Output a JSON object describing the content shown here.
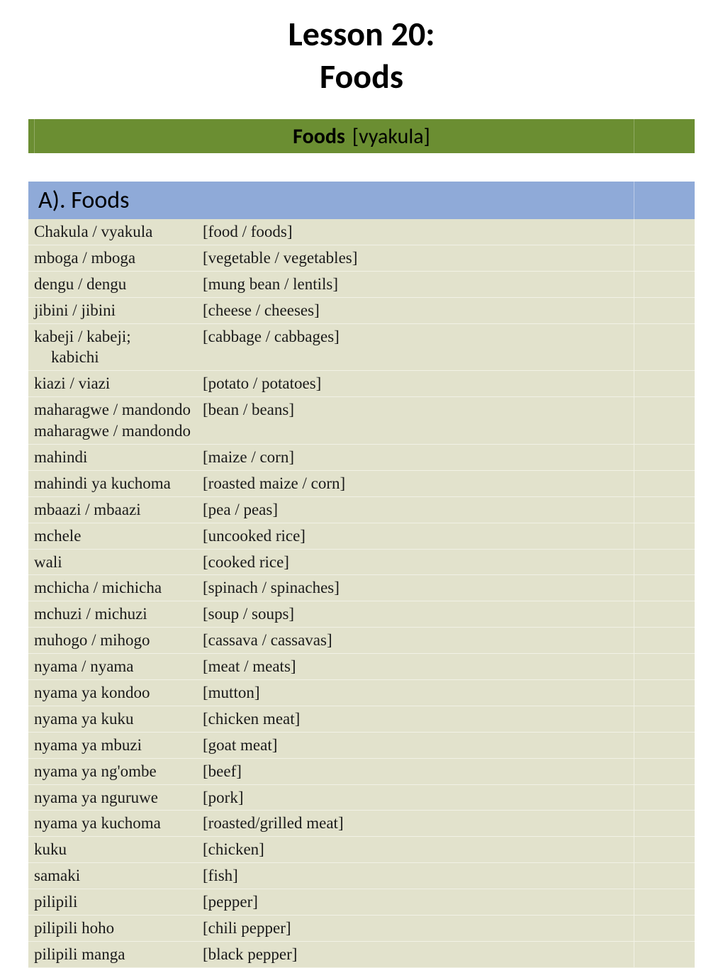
{
  "title": {
    "line1": "Lesson 20:",
    "line2": "Foods"
  },
  "banner": {
    "bold": "Foods",
    "plain": "[vyakula]",
    "bg_color": "#6b8e32",
    "font_family": "Calibri",
    "font_size": 30
  },
  "section": {
    "label": "A). Foods",
    "bg_color": "#8faad8",
    "font_family": "Calibri",
    "font_size": 34
  },
  "table": {
    "bg_color": "#e2e2cc",
    "row_border_color": "rgba(255,255,255,0.5)",
    "font_family": "Palatino Linotype",
    "font_size": 23,
    "rows": [
      {
        "sw": "Chakula / vyakula",
        "en": "[food / foods]"
      },
      {
        "sw": "mboga / mboga",
        "en": "[vegetable / vegetables]"
      },
      {
        "sw": "dengu / dengu",
        "en": "[mung bean / lentils]"
      },
      {
        "sw": "jibini / jibini",
        "en": "[cheese / cheeses]"
      },
      {
        "sw": "kabeji / kabeji;",
        "sw_alt": "kabichi",
        "en": "[cabbage / cabbages]"
      },
      {
        "sw": "kiazi / viazi",
        "en": "[potato / potatoes]"
      },
      {
        "sw": "maharagwe / mandondo maharagwe / mandondo",
        "en": "[bean / beans]"
      },
      {
        "sw": "mahindi",
        "en": "[maize / corn]"
      },
      {
        "sw": "mahindi ya kuchoma",
        "en": "[roasted maize / corn]"
      },
      {
        "sw": "mbaazi / mbaazi",
        "en": "[pea / peas]"
      },
      {
        "sw": "mchele",
        "en": "[uncooked rice]"
      },
      {
        "sw": "wali",
        "en": "[cooked rice]"
      },
      {
        "sw": "mchicha / michicha",
        "en": "[spinach / spinaches]"
      },
      {
        "sw": "mchuzi / michuzi",
        "en": "[soup / soups]"
      },
      {
        "sw": "muhogo / mihogo",
        "en": "[cassava / cassavas]"
      },
      {
        "sw": "nyama / nyama",
        "en": "[meat / meats]"
      },
      {
        "sw": "nyama ya kondoo",
        "en": "[mutton]"
      },
      {
        "sw": "nyama ya kuku",
        "en": "[chicken meat]"
      },
      {
        "sw": "nyama ya mbuzi",
        "en": "[goat meat]"
      },
      {
        "sw": "nyama ya ng'ombe",
        "en": "[beef]"
      },
      {
        "sw": "nyama ya nguruwe",
        "en": "[pork]"
      },
      {
        "sw": "nyama ya kuchoma",
        "en": "[roasted/grilled meat]"
      },
      {
        "sw": "kuku",
        "en": "[chicken]"
      },
      {
        "sw": "samaki",
        "en": "[fish]"
      },
      {
        "sw": "pilipili",
        "en": "[pepper]"
      },
      {
        "sw": "pilipili hoho",
        "en": "[chili pepper]"
      },
      {
        "sw": "pilipili manga",
        "en": "[black pepper]"
      }
    ]
  }
}
